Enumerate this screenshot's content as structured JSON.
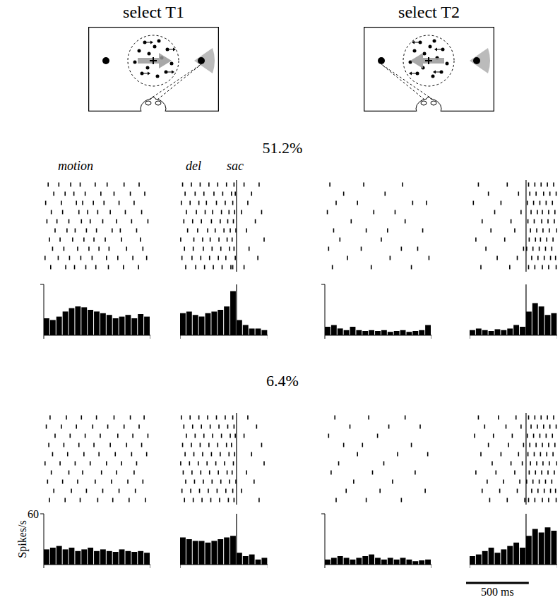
{
  "columns": [
    "select T1",
    "select T2"
  ],
  "rows": [
    "51.2%",
    "6.4%"
  ],
  "scale_bar": {
    "value": 500,
    "label": "500 ms"
  },
  "chart_data": [
    {
      "type": "histogram",
      "annotations": [
        "motion"
      ],
      "color": "#000000",
      "xlim": [
        0,
        850
      ],
      "xticks": [
        0,
        850
      ],
      "ylim": [
        0,
        60
      ],
      "yticks": [
        60
      ],
      "tick_labels": false,
      "bins": [
        0,
        50,
        100,
        150,
        200,
        250,
        300,
        350,
        400,
        450,
        500,
        550,
        600,
        650,
        700,
        750,
        800,
        850
      ],
      "values": [
        20,
        18,
        22,
        28,
        32,
        34,
        33,
        30,
        28,
        26,
        24,
        20,
        22,
        24,
        20,
        25,
        22
      ],
      "raster": [
        [
          35,
          120,
          215,
          290,
          410,
          505,
          640,
          760
        ],
        [
          80,
          170,
          240,
          330,
          455,
          560,
          690,
          805
        ],
        [
          15,
          140,
          260,
          310,
          395,
          480,
          600,
          720
        ],
        [
          60,
          150,
          280,
          350,
          430,
          530,
          650,
          780
        ],
        [
          25,
          105,
          200,
          300,
          370,
          470,
          580,
          700,
          830
        ],
        [
          90,
          185,
          250,
          340,
          420,
          545,
          610,
          740
        ],
        [
          45,
          130,
          230,
          320,
          400,
          490,
          620,
          770
        ],
        [
          70,
          160,
          270,
          360,
          440,
          520,
          660,
          790
        ],
        [
          10,
          115,
          205,
          295,
          385,
          500,
          590,
          710,
          820
        ],
        [
          55,
          175,
          245,
          335,
          415,
          515,
          635,
          755
        ]
      ]
    },
    {
      "type": "histogram",
      "annotations": [
        "del",
        "sac"
      ],
      "color": "#000000",
      "xlim": [
        -450,
        250
      ],
      "xticks": [
        -450,
        250
      ],
      "ylim": [
        0,
        60
      ],
      "tick_labels": false,
      "event_lines": [
        0
      ],
      "bins": [
        -450,
        -400,
        -350,
        -300,
        -250,
        -200,
        -150,
        -100,
        -50,
        0,
        50,
        100,
        150,
        200,
        250
      ],
      "values": [
        26,
        28,
        24,
        22,
        26,
        28,
        30,
        34,
        52,
        18,
        12,
        8,
        8,
        6
      ],
      "raster": [
        [
          -430,
          -360,
          -290,
          -220,
          -150,
          -80,
          -20,
          60,
          180
        ],
        [
          -410,
          -330,
          -260,
          -180,
          -110,
          -40,
          -10,
          120
        ],
        [
          -440,
          -370,
          -300,
          -240,
          -160,
          -90,
          -30,
          90
        ],
        [
          -400,
          -320,
          -250,
          -190,
          -120,
          -60,
          -15,
          40,
          200
        ],
        [
          -420,
          -350,
          -280,
          -200,
          -130,
          -70,
          -25,
          150
        ],
        [
          -390,
          -310,
          -230,
          -170,
          -100,
          -50,
          -5,
          80
        ],
        [
          -445,
          -340,
          -270,
          -210,
          -140,
          -75,
          -35,
          220
        ],
        [
          -415,
          -345,
          -265,
          -195,
          -125,
          -55,
          -20,
          100
        ],
        [
          -435,
          -355,
          -285,
          -215,
          -145,
          -85,
          -10,
          170
        ],
        [
          -405,
          -325,
          -255,
          -185,
          -115,
          -45,
          -30,
          60
        ]
      ]
    },
    {
      "type": "histogram",
      "color": "#000000",
      "xlim": [
        0,
        850
      ],
      "xticks": [
        0,
        850
      ],
      "ylim": [
        0,
        60
      ],
      "yticks": [
        60
      ],
      "tick_labels": false,
      "bins": [
        0,
        50,
        100,
        150,
        200,
        250,
        300,
        350,
        400,
        450,
        500,
        550,
        600,
        650,
        700,
        750,
        800,
        850
      ],
      "values": [
        10,
        12,
        8,
        6,
        10,
        6,
        5,
        6,
        5,
        6,
        4,
        5,
        6,
        4,
        5,
        6,
        12
      ],
      "raster": [
        [
          40,
          310,
          620
        ],
        [
          150,
          480
        ],
        [
          90,
          260,
          700,
          810
        ],
        [
          20,
          390,
          560
        ],
        [
          210,
          640
        ],
        [
          70,
          330,
          500,
          780
        ],
        [
          120,
          450
        ],
        [
          30,
          290,
          610,
          740
        ],
        [
          180,
          520,
          830
        ],
        [
          60,
          370,
          690
        ]
      ]
    },
    {
      "type": "histogram",
      "color": "#000000",
      "xlim": [
        -450,
        250
      ],
      "xticks": [
        -450,
        250
      ],
      "ylim": [
        0,
        60
      ],
      "tick_labels": false,
      "event_lines": [
        0
      ],
      "bins": [
        -450,
        -400,
        -350,
        -300,
        -250,
        -200,
        -150,
        -100,
        -50,
        0,
        50,
        100,
        150,
        200,
        250
      ],
      "values": [
        6,
        8,
        6,
        5,
        7,
        6,
        8,
        12,
        10,
        28,
        38,
        34,
        24,
        26
      ],
      "raster": [
        [
          -380,
          -150,
          20,
          70,
          120,
          170,
          220
        ],
        [
          -300,
          -60,
          30,
          80,
          140,
          190,
          240
        ],
        [
          -420,
          -200,
          10,
          60,
          110,
          160,
          210
        ],
        [
          -250,
          -40,
          40,
          90,
          130,
          180,
          230
        ],
        [
          -350,
          -120,
          15,
          65,
          125,
          175,
          225
        ],
        [
          -280,
          -90,
          35,
          85,
          135,
          185,
          245
        ],
        [
          -400,
          -170,
          25,
          75,
          115,
          165,
          215
        ],
        [
          -320,
          -20,
          5,
          55,
          105,
          155,
          205
        ],
        [
          -230,
          -70,
          45,
          95,
          145,
          195,
          235
        ],
        [
          -360,
          -130,
          20,
          70,
          130,
          180,
          240
        ]
      ]
    },
    {
      "type": "histogram",
      "color": "#000000",
      "xlim": [
        0,
        850
      ],
      "xticks": [
        0,
        850
      ],
      "ylim": [
        0,
        60
      ],
      "yticks": [
        60
      ],
      "tick_labels": "y",
      "ylabel": "Spikes/s",
      "bins": [
        0,
        50,
        100,
        150,
        200,
        250,
        300,
        350,
        400,
        450,
        500,
        550,
        600,
        650,
        700,
        750,
        800,
        850
      ],
      "values": [
        18,
        20,
        22,
        18,
        20,
        16,
        18,
        20,
        16,
        18,
        16,
        15,
        18,
        16,
        15,
        16,
        14
      ],
      "raster": [
        [
          50,
          180,
          300,
          420,
          560,
          690,
          800
        ],
        [
          20,
          140,
          260,
          390,
          510,
          640,
          760
        ],
        [
          90,
          210,
          330,
          450,
          590,
          710,
          830
        ],
        [
          40,
          160,
          280,
          400,
          530,
          660,
          780
        ],
        [
          70,
          190,
          320,
          440,
          570,
          700,
          820
        ],
        [
          10,
          130,
          250,
          370,
          500,
          620,
          740
        ],
        [
          60,
          200,
          310,
          460,
          580,
          720
        ],
        [
          30,
          150,
          270,
          410,
          540,
          670,
          790
        ],
        [
          80,
          220,
          340,
          470,
          600,
          730
        ],
        [
          45,
          170,
          290,
          430,
          550,
          680,
          810
        ]
      ]
    },
    {
      "type": "histogram",
      "color": "#000000",
      "xlim": [
        -450,
        250
      ],
      "xticks": [
        -450,
        250
      ],
      "ylim": [
        0,
        60
      ],
      "tick_labels": false,
      "event_lines": [
        0
      ],
      "bins": [
        -450,
        -400,
        -350,
        -300,
        -250,
        -200,
        -150,
        -100,
        -50,
        0,
        50,
        100,
        150,
        200,
        250
      ],
      "values": [
        32,
        30,
        28,
        28,
        26,
        28,
        30,
        32,
        34,
        14,
        10,
        12,
        6,
        8
      ],
      "raster": [
        [
          -440,
          -370,
          -300,
          -230,
          -160,
          -90,
          -30,
          90
        ],
        [
          -420,
          -350,
          -280,
          -210,
          -140,
          -70,
          -20,
          160
        ],
        [
          -400,
          -330,
          -260,
          -190,
          -120,
          -50,
          -10,
          60
        ],
        [
          -430,
          -360,
          -290,
          -220,
          -150,
          -80,
          -40,
          200
        ],
        [
          -410,
          -340,
          -270,
          -200,
          -130,
          -60,
          -15,
          120
        ],
        [
          -445,
          -375,
          -305,
          -235,
          -165,
          -95,
          -25,
          220
        ],
        [
          -425,
          -355,
          -285,
          -215,
          -145,
          -75,
          -35,
          80
        ],
        [
          -405,
          -335,
          -265,
          -195,
          -125,
          -55,
          -5,
          140
        ],
        [
          -435,
          -365,
          -295,
          -225,
          -155,
          -85,
          -30,
          40
        ],
        [
          -415,
          -345,
          -275,
          -205,
          -135,
          -65,
          -20,
          180
        ]
      ]
    },
    {
      "type": "histogram",
      "color": "#000000",
      "xlim": [
        0,
        850
      ],
      "xticks": [
        0,
        850
      ],
      "ylim": [
        0,
        60
      ],
      "yticks": [
        60
      ],
      "tick_labels": false,
      "bins": [
        0,
        50,
        100,
        150,
        200,
        250,
        300,
        350,
        400,
        450,
        500,
        550,
        600,
        650,
        700,
        750,
        800,
        850
      ],
      "values": [
        6,
        8,
        10,
        8,
        6,
        8,
        10,
        12,
        8,
        6,
        8,
        6,
        8,
        6,
        4,
        5,
        6
      ],
      "raster": [
        [
          80,
          350,
          640
        ],
        [
          200,
          510,
          760
        ],
        [
          30,
          420
        ],
        [
          150,
          300,
          690
        ],
        [
          260,
          580,
          820
        ],
        [
          110,
          470
        ],
        [
          50,
          380,
          720
        ],
        [
          230,
          540
        ],
        [
          170,
          440,
          800
        ],
        [
          90,
          330,
          610
        ]
      ]
    },
    {
      "type": "histogram",
      "color": "#000000",
      "xlim": [
        -450,
        250
      ],
      "xticks": [
        -450,
        250
      ],
      "ylim": [
        0,
        60
      ],
      "tick_labels": false,
      "event_lines": [
        0
      ],
      "bins": [
        -450,
        -400,
        -350,
        -300,
        -250,
        -200,
        -150,
        -100,
        -50,
        0,
        50,
        100,
        150,
        200,
        250
      ],
      "values": [
        10,
        12,
        16,
        20,
        14,
        18,
        22,
        26,
        20,
        34,
        42,
        38,
        44,
        40
      ],
      "raster": [
        [
          -380,
          -220,
          -80,
          20,
          70,
          120,
          170,
          220
        ],
        [
          -330,
          -160,
          -40,
          40,
          90,
          140,
          190,
          240
        ],
        [
          -410,
          -260,
          -110,
          10,
          60,
          110,
          160,
          210
        ],
        [
          -300,
          -140,
          -20,
          30,
          80,
          130,
          180,
          230
        ],
        [
          -360,
          -200,
          -60,
          15,
          65,
          115,
          165,
          215
        ],
        [
          -270,
          -120,
          -30,
          35,
          85,
          135,
          185,
          245
        ],
        [
          -400,
          -240,
          -90,
          25,
          75,
          125,
          175,
          225
        ],
        [
          -310,
          -180,
          -50,
          5,
          55,
          105,
          155,
          205
        ],
        [
          -350,
          -210,
          -70,
          45,
          95,
          145,
          195,
          235
        ],
        [
          -290,
          -150,
          -10,
          20,
          70,
          130,
          180,
          240
        ]
      ]
    }
  ]
}
